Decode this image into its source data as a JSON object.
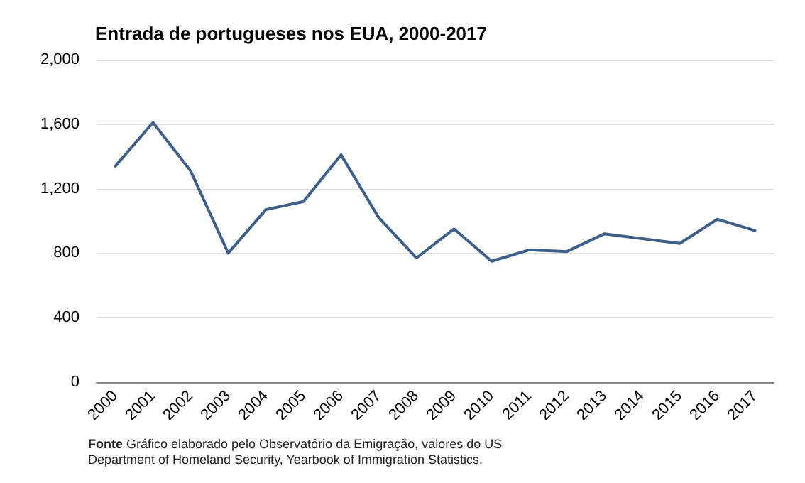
{
  "chart_data": {
    "type": "line",
    "title": "Entrada de portugueses nos EUA, 2000-2017",
    "categories": [
      "2000",
      "2001",
      "2002",
      "2003",
      "2004",
      "2005",
      "2006",
      "2007",
      "2008",
      "2009",
      "2010",
      "2011",
      "2012",
      "2013",
      "2014",
      "2015",
      "2016",
      "2017"
    ],
    "series": [
      {
        "color": "#3e5f8a",
        "values": [
          1340,
          1610,
          1310,
          800,
          1070,
          1120,
          1410,
          1020,
          770,
          950,
          750,
          820,
          810,
          920,
          890,
          860,
          1010,
          940
        ]
      }
    ],
    "ylim": [
      0,
      2000
    ],
    "yticks": [
      {
        "value": 0,
        "label": "0"
      },
      {
        "value": 400,
        "label": "400"
      },
      {
        "value": 800,
        "label": "800"
      },
      {
        "value": 1200,
        "label": "1,200"
      },
      {
        "value": 1600,
        "label": "1,600"
      },
      {
        "value": 2000,
        "label": "2,000"
      }
    ],
    "grid": "y",
    "marker": "none",
    "line_style": "solid",
    "annotations": [
      "Fonte Gráfico elaborado pelo Observatório da Emigração, valores do US Department of Homeland Security, Yearbook of Immigration Statistics."
    ]
  }
}
